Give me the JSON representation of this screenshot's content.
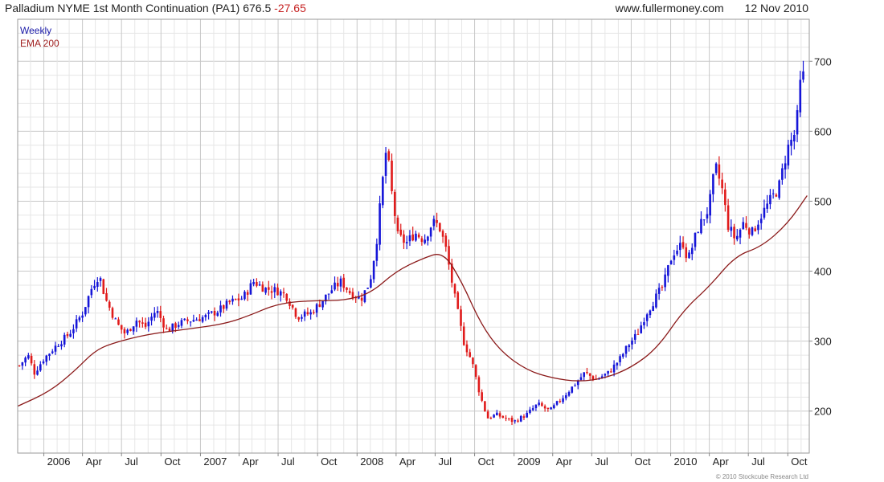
{
  "header": {
    "title": "Palladium NYME 1st Month Continuation (PA1)",
    "last": "676.5",
    "change": "-27.65",
    "site": "www.fullermoney.com",
    "date": "12 Nov 2010"
  },
  "copyright": "© 2010 Stockcube Research Ltd",
  "chart_data": {
    "type": "candlestick",
    "legend": [
      "Weekly",
      "EMA 200"
    ],
    "legend_placement": "top-left",
    "ylim": [
      140,
      760
    ],
    "yticks": [
      200,
      300,
      400,
      500,
      600,
      700
    ],
    "xlim": [
      "2005-11-01",
      "2010-11-20"
    ],
    "xticks": [
      {
        "label": "2006",
        "date": "2006-01-01"
      },
      {
        "label": "Apr",
        "date": "2006-04-01"
      },
      {
        "label": "Jul",
        "date": "2006-07-01"
      },
      {
        "label": "Oct",
        "date": "2006-10-01"
      },
      {
        "label": "2007",
        "date": "2007-01-01"
      },
      {
        "label": "Apr",
        "date": "2007-04-01"
      },
      {
        "label": "Jul",
        "date": "2007-07-01"
      },
      {
        "label": "Oct",
        "date": "2007-10-01"
      },
      {
        "label": "2008",
        "date": "2008-01-01"
      },
      {
        "label": "Apr",
        "date": "2008-04-01"
      },
      {
        "label": "Jul",
        "date": "2008-07-01"
      },
      {
        "label": "Oct",
        "date": "2008-10-01"
      },
      {
        "label": "2009",
        "date": "2009-01-01"
      },
      {
        "label": "Apr",
        "date": "2009-04-01"
      },
      {
        "label": "Jul",
        "date": "2009-07-01"
      },
      {
        "label": "Oct",
        "date": "2009-10-01"
      },
      {
        "label": "2010",
        "date": "2010-01-01"
      },
      {
        "label": "Apr",
        "date": "2010-04-01"
      },
      {
        "label": "Jul",
        "date": "2010-07-01"
      },
      {
        "label": "Oct",
        "date": "2010-10-01"
      }
    ],
    "price_path": [
      [
        "2005-11-05",
        265
      ],
      [
        "2005-11-25",
        280
      ],
      [
        "2005-12-10",
        255
      ],
      [
        "2006-01-01",
        275
      ],
      [
        "2006-02-01",
        295
      ],
      [
        "2006-03-01",
        310
      ],
      [
        "2006-04-01",
        340
      ],
      [
        "2006-04-25",
        380
      ],
      [
        "2006-05-10",
        395
      ],
      [
        "2006-05-25",
        360
      ],
      [
        "2006-06-20",
        325
      ],
      [
        "2006-07-10",
        310
      ],
      [
        "2006-08-05",
        330
      ],
      [
        "2006-08-25",
        320
      ],
      [
        "2006-09-20",
        345
      ],
      [
        "2006-10-15",
        315
      ],
      [
        "2006-11-10",
        325
      ],
      [
        "2006-12-10",
        330
      ],
      [
        "2007-01-15",
        335
      ],
      [
        "2007-02-15",
        345
      ],
      [
        "2007-03-10",
        355
      ],
      [
        "2007-04-10",
        362
      ],
      [
        "2007-05-05",
        385
      ],
      [
        "2007-06-01",
        375
      ],
      [
        "2007-06-30",
        372
      ],
      [
        "2007-07-20",
        365
      ],
      [
        "2007-08-15",
        335
      ],
      [
        "2007-09-15",
        340
      ],
      [
        "2007-10-15",
        360
      ],
      [
        "2007-11-05",
        375
      ],
      [
        "2007-11-25",
        385
      ],
      [
        "2007-12-15",
        370
      ],
      [
        "2008-01-10",
        360
      ],
      [
        "2008-01-31",
        385
      ],
      [
        "2008-02-15",
        440
      ],
      [
        "2008-02-28",
        520
      ],
      [
        "2008-03-10",
        580
      ],
      [
        "2008-03-20",
        520
      ],
      [
        "2008-04-05",
        450
      ],
      [
        "2008-04-25",
        440
      ],
      [
        "2008-05-15",
        455
      ],
      [
        "2008-06-05",
        445
      ],
      [
        "2008-06-25",
        470
      ],
      [
        "2008-07-10",
        465
      ],
      [
        "2008-07-25",
        435
      ],
      [
        "2008-08-15",
        365
      ],
      [
        "2008-09-05",
        300
      ],
      [
        "2008-09-25",
        270
      ],
      [
        "2008-10-15",
        220
      ],
      [
        "2008-10-31",
        190
      ],
      [
        "2008-11-20",
        195
      ],
      [
        "2008-12-10",
        190
      ],
      [
        "2009-01-01",
        185
      ],
      [
        "2009-01-30",
        195
      ],
      [
        "2009-02-25",
        210
      ],
      [
        "2009-03-25",
        200
      ],
      [
        "2009-04-25",
        220
      ],
      [
        "2009-05-25",
        240
      ],
      [
        "2009-06-15",
        255
      ],
      [
        "2009-07-10",
        245
      ],
      [
        "2009-08-10",
        255
      ],
      [
        "2009-09-05",
        275
      ],
      [
        "2009-09-25",
        295
      ],
      [
        "2009-10-15",
        310
      ],
      [
        "2009-11-05",
        340
      ],
      [
        "2009-11-25",
        360
      ],
      [
        "2009-12-15",
        380
      ],
      [
        "2010-01-05",
        425
      ],
      [
        "2010-01-30",
        440
      ],
      [
        "2010-02-10",
        415
      ],
      [
        "2010-03-05",
        460
      ],
      [
        "2010-03-31",
        490
      ],
      [
        "2010-04-15",
        550
      ],
      [
        "2010-04-30",
        520
      ],
      [
        "2010-05-15",
        465
      ],
      [
        "2010-06-01",
        445
      ],
      [
        "2010-06-20",
        470
      ],
      [
        "2010-07-10",
        455
      ],
      [
        "2010-07-31",
        480
      ],
      [
        "2010-08-20",
        500
      ],
      [
        "2010-09-10",
        520
      ],
      [
        "2010-09-30",
        575
      ],
      [
        "2010-10-20",
        600
      ],
      [
        "2010-11-01",
        680
      ],
      [
        "2010-11-12",
        676.5
      ]
    ],
    "ema200_path": [
      [
        "2005-11-01",
        207
      ],
      [
        "2006-01-15",
        228
      ],
      [
        "2006-03-15",
        258
      ],
      [
        "2006-05-01",
        287
      ],
      [
        "2006-06-15",
        298
      ],
      [
        "2006-09-01",
        310
      ],
      [
        "2006-12-01",
        317
      ],
      [
        "2007-03-01",
        325
      ],
      [
        "2007-05-01",
        338
      ],
      [
        "2007-06-15",
        350
      ],
      [
        "2007-08-01",
        356
      ],
      [
        "2007-10-01",
        358
      ],
      [
        "2007-12-01",
        358
      ],
      [
        "2008-02-01",
        368
      ],
      [
        "2008-04-01",
        400
      ],
      [
        "2008-06-01",
        418
      ],
      [
        "2008-07-20",
        428
      ],
      [
        "2008-09-01",
        385
      ],
      [
        "2008-10-15",
        325
      ],
      [
        "2008-12-01",
        285
      ],
      [
        "2009-02-01",
        258
      ],
      [
        "2009-04-01",
        247
      ],
      [
        "2009-06-01",
        242
      ],
      [
        "2009-08-01",
        247
      ],
      [
        "2009-10-01",
        262
      ],
      [
        "2009-12-01",
        290
      ],
      [
        "2010-02-01",
        345
      ],
      [
        "2010-04-01",
        378
      ],
      [
        "2010-06-01",
        422
      ],
      [
        "2010-08-01",
        435
      ],
      [
        "2010-10-01",
        468
      ],
      [
        "2010-11-15",
        508
      ]
    ]
  }
}
